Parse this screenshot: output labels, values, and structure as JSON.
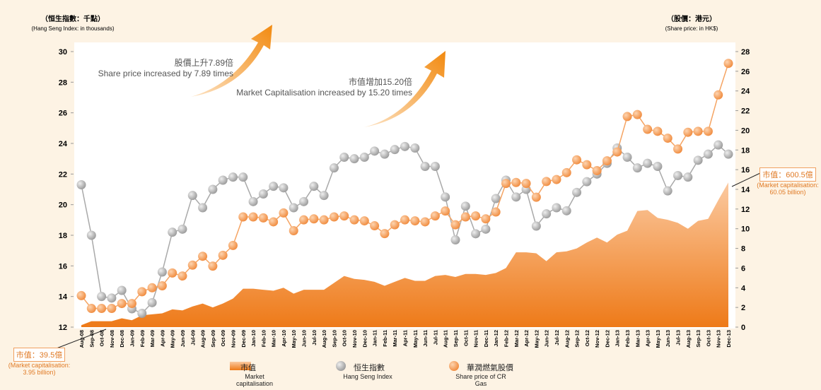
{
  "chart_data": {
    "type": "combo",
    "left_axis_label": "（恒生指數：千點）",
    "left_axis_label_en": "(Hang Seng Index: in thousands)",
    "right_axis_label": "（股價：港元）",
    "right_axis_label_en": "(Share price: in HK$)",
    "categories": [
      "Aug-08",
      "Sep-08",
      "Oct-08",
      "Nov-08",
      "Dec-08",
      "Jan-09",
      "Feb-09",
      "Mar-09",
      "Apr-09",
      "May-09",
      "Jun-09",
      "Jul-09",
      "Aug-09",
      "Sep-09",
      "Oct-09",
      "Nov-09",
      "Dec-09",
      "Jan-10",
      "Feb-10",
      "Mar-10",
      "Apr-10",
      "May-10",
      "Jun-10",
      "Jul-10",
      "Aug-10",
      "Sep-10",
      "Oct-10",
      "Nov-10",
      "Dec-10",
      "Jan-11",
      "Feb-11",
      "Mar-11",
      "Apr-11",
      "May-11",
      "Jun-11",
      "Jul-11",
      "Aug-11",
      "Sep-11",
      "Oct-11",
      "Nov-11",
      "Dec-11",
      "Jan-12",
      "Feb-12",
      "Mar-12",
      "Apr-12",
      "May-12",
      "Jun-12",
      "Jul-12",
      "Aug-12",
      "Sep-12",
      "Oct-12",
      "Nov-12",
      "Dec-12",
      "Jan-13",
      "Feb-13",
      "Mar-13",
      "Apr-13",
      "May-13",
      "Jun-13",
      "Jul-13",
      "Aug-13",
      "Sep-13",
      "Oct-13",
      "Nov-13",
      "Dec-13"
    ],
    "series": [
      {
        "name": "市值",
        "name_en": "Market capitalisation",
        "kind": "area",
        "axis": "y2",
        "color": "#f07d1a",
        "values": [
          0.2,
          0.6,
          0.6,
          0.6,
          0.9,
          0.7,
          1.2,
          1.3,
          1.4,
          1.8,
          1.7,
          2.1,
          2.4,
          2.0,
          2.4,
          2.9,
          3.9,
          3.9,
          3.8,
          3.7,
          4.0,
          3.4,
          3.8,
          3.8,
          3.8,
          4.5,
          5.2,
          4.9,
          4.8,
          4.6,
          4.2,
          4.6,
          5.0,
          4.7,
          4.7,
          5.2,
          5.3,
          5.1,
          5.4,
          5.4,
          5.3,
          5.5,
          6.0,
          7.6,
          7.6,
          7.5,
          6.7,
          7.6,
          7.7,
          8.0,
          8.6,
          9.1,
          8.6,
          9.4,
          9.8,
          11.8,
          11.9,
          11.1,
          10.9,
          10.6,
          10.0,
          10.8,
          11.0,
          12.9,
          14.7
        ]
      },
      {
        "name": "恒生指數",
        "name_en": "Hang Seng Index",
        "kind": "line",
        "color": "#a9a9a9",
        "values": [
          21.3,
          18.0,
          14.0,
          13.9,
          14.4,
          13.2,
          12.9,
          13.6,
          15.6,
          18.2,
          18.4,
          20.6,
          19.8,
          21.0,
          21.6,
          21.8,
          21.8,
          20.2,
          20.7,
          21.2,
          21.1,
          19.8,
          20.2,
          21.2,
          20.6,
          22.4,
          23.1,
          23.0,
          23.1,
          23.5,
          23.3,
          23.6,
          23.8,
          23.7,
          22.5,
          22.5,
          20.5,
          17.7,
          19.9,
          18.1,
          18.4,
          20.4,
          21.6,
          20.5,
          21.0,
          18.6,
          19.4,
          19.8,
          19.6,
          20.8,
          21.5,
          22.0,
          22.7,
          23.7,
          23.1,
          22.4,
          22.7,
          22.5,
          20.9,
          21.9,
          21.8,
          22.9,
          23.3,
          23.9,
          23.3
        ]
      },
      {
        "name": "華潤燃氣股價",
        "name_en": "Share price of CR Gas",
        "kind": "line",
        "axis": "y2",
        "color": "#f5a463",
        "values": [
          3.2,
          1.9,
          1.9,
          1.9,
          2.4,
          2.4,
          3.6,
          4.0,
          4.2,
          5.5,
          5.2,
          6.3,
          7.2,
          6.2,
          7.3,
          8.3,
          11.2,
          11.2,
          11.1,
          10.7,
          11.6,
          9.8,
          10.9,
          11.0,
          10.9,
          11.2,
          11.3,
          10.9,
          10.8,
          10.3,
          9.5,
          10.4,
          10.9,
          10.8,
          10.7,
          11.3,
          11.8,
          10.4,
          11.2,
          11.3,
          11.0,
          11.7,
          14.6,
          14.7,
          14.6,
          13.2,
          14.8,
          15.0,
          15.7,
          17.0,
          16.5,
          15.9,
          16.9,
          17.8,
          21.4,
          21.6,
          20.1,
          19.9,
          19.2,
          18.1,
          19.8,
          19.9,
          19.9,
          23.6,
          26.8
        ]
      }
    ],
    "ylim": [
      12,
      30
    ],
    "yticks": [
      12,
      14,
      16,
      18,
      20,
      22,
      24,
      26,
      28,
      30
    ],
    "y2lim": [
      0,
      28
    ],
    "y2ticks": [
      0,
      2,
      4,
      6,
      8,
      10,
      12,
      14,
      16,
      18,
      20,
      22,
      24,
      26,
      28
    ],
    "annotations": {
      "share_cn": "股價上升7.89倍",
      "share_en": "Share price increased by 7.89 times",
      "cap_cn": "市值增加15.20倍",
      "cap_en": "Market Capitalisation increased by 15.20 times",
      "start_cn": "市值：39.5億",
      "start_en": "(Market capitalisation: 3.95 billion)",
      "end_cn": "市值：600.5億",
      "end_en": "(Market capitalisation: 60.05 billion)"
    }
  }
}
